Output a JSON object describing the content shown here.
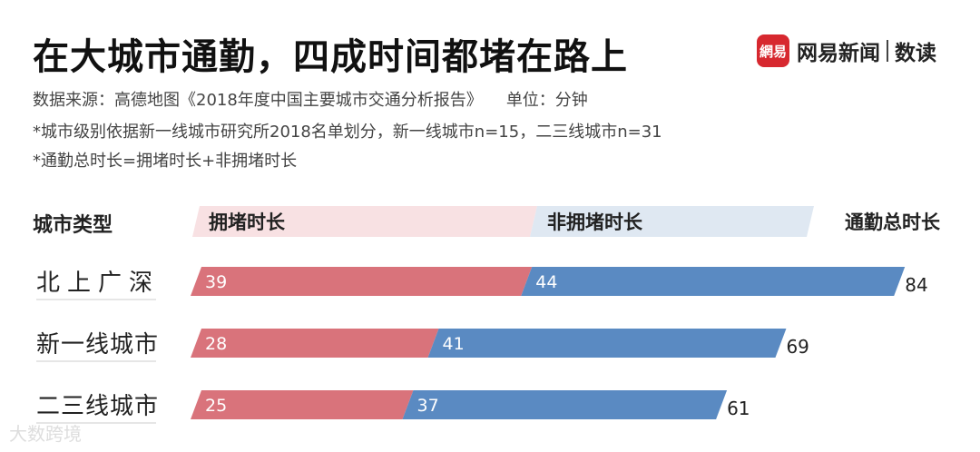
{
  "header": {
    "title": "在大城市通勤，四成时间都堵在路上",
    "brand_logo_text": "網易",
    "brand_name": "网易新闻",
    "brand_sub": "数读"
  },
  "meta": {
    "source": "数据来源：高德地图《2018年度中国主要城市交通分析报告》",
    "unit": "单位：分钟",
    "note1": "*城市级别依据新一线城市研究所2018名单划分，新一线城市n=15，二三线城市n=31",
    "note2": "*通勤总时长=拥堵时长+非拥堵时长"
  },
  "chart_data": {
    "type": "bar",
    "orientation": "horizontal",
    "stacked": true,
    "category_header": "城市类型",
    "categories": [
      "北上广深",
      "新一线城市",
      "二三线城市"
    ],
    "series": [
      {
        "name": "拥堵时长",
        "values": [
          39,
          28,
          25
        ],
        "color": "#d9737b",
        "header_color": "#f8e1e3"
      },
      {
        "name": "非拥堵时长",
        "values": [
          44,
          41,
          37
        ],
        "color": "#5a8ac2",
        "header_color": "#dfe8f2"
      }
    ],
    "total_label": "通勤总时长",
    "totals": [
      84,
      69,
      61
    ]
  },
  "watermark": "大数跨境"
}
